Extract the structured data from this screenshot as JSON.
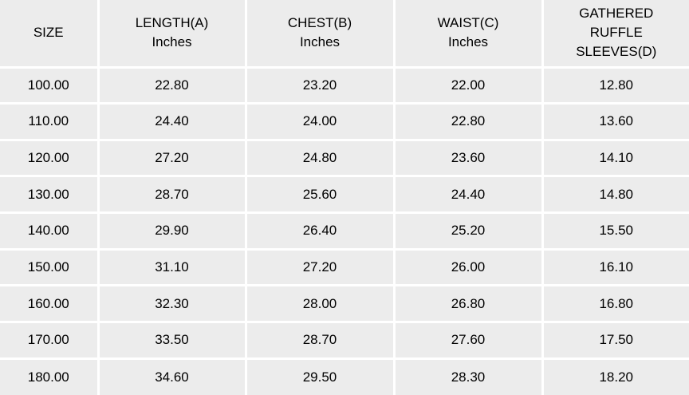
{
  "table": {
    "title": "size-chart",
    "unit_label": "Inches",
    "columns": [
      {
        "id": "size",
        "lines": [
          "SIZE"
        ]
      },
      {
        "id": "length",
        "lines": [
          "LENGTH(A)",
          "Inches"
        ]
      },
      {
        "id": "chest",
        "lines": [
          "CHEST(B)",
          "Inches"
        ]
      },
      {
        "id": "waist",
        "lines": [
          "WAIST(C)",
          "Inches"
        ]
      },
      {
        "id": "sleeves",
        "lines": [
          "GATHERED",
          "RUFFLE",
          "SLEEVES(D)"
        ]
      }
    ],
    "rows": [
      [
        "100.00",
        "22.80",
        "23.20",
        "22.00",
        "12.80"
      ],
      [
        "110.00",
        "24.40",
        "24.00",
        "22.80",
        "13.60"
      ],
      [
        "120.00",
        "27.20",
        "24.80",
        "23.60",
        "14.10"
      ],
      [
        "130.00",
        "28.70",
        "25.60",
        "24.40",
        "14.80"
      ],
      [
        "140.00",
        "29.90",
        "26.40",
        "25.20",
        "15.50"
      ],
      [
        "150.00",
        "31.10",
        "27.20",
        "26.00",
        "16.10"
      ],
      [
        "160.00",
        "32.30",
        "28.00",
        "26.80",
        "16.80"
      ],
      [
        "170.00",
        "33.50",
        "28.70",
        "27.60",
        "17.50"
      ],
      [
        "180.00",
        "34.60",
        "29.50",
        "28.30",
        "18.20"
      ]
    ]
  },
  "colors": {
    "cell_background": "#ECECEC",
    "gridline": "#FFFFFF",
    "text": "#000000"
  }
}
